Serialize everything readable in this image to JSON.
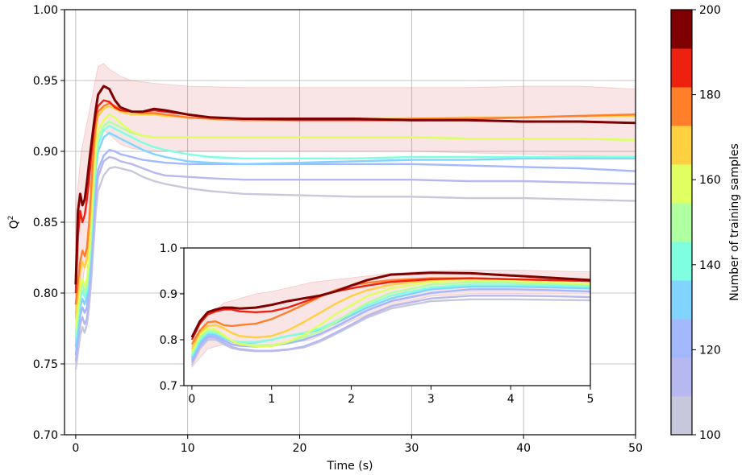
{
  "chart_data": {
    "type": "line",
    "main": {
      "xlabel": "Time (s)",
      "ylabel": "Q",
      "ylabel_sup": "2",
      "xlim": [
        -1,
        50
      ],
      "ylim": [
        0.7,
        1.0
      ],
      "xticks": [
        0,
        10,
        20,
        30,
        40,
        50
      ],
      "xtick_labels": [
        "0",
        "10",
        "20",
        "30",
        "40",
        "50"
      ],
      "yticks": [
        0.7,
        0.75,
        0.8,
        0.85,
        0.9,
        0.95,
        1.0
      ],
      "ytick_labels": [
        "0.70",
        "0.75",
        "0.80",
        "0.85",
        "0.90",
        "0.95",
        "1.00"
      ],
      "grid": true,
      "band": {
        "color": "#d9534f",
        "opacity": 0.15,
        "x": [
          0,
          0.5,
          1,
          1.5,
          2,
          2.5,
          3,
          4,
          5,
          7,
          10,
          15,
          20,
          25,
          30,
          35,
          40,
          45,
          50
        ],
        "upper": [
          0.86,
          0.9,
          0.92,
          0.94,
          0.96,
          0.962,
          0.958,
          0.953,
          0.95,
          0.948,
          0.946,
          0.945,
          0.945,
          0.945,
          0.945,
          0.945,
          0.946,
          0.946,
          0.944
        ],
        "lower": [
          0.75,
          0.8,
          0.83,
          0.87,
          0.905,
          0.915,
          0.912,
          0.905,
          0.902,
          0.9,
          0.9,
          0.9,
          0.9,
          0.9,
          0.9,
          0.899,
          0.898,
          0.897,
          0.896
        ]
      },
      "x": [
        0,
        0.2,
        0.4,
        0.6,
        0.8,
        1.0,
        1.2,
        1.4,
        1.6,
        1.8,
        2.0,
        2.5,
        3.0,
        3.5,
        4,
        5,
        6,
        7,
        8,
        10,
        12,
        15,
        20,
        25,
        30,
        35,
        40,
        45,
        50
      ],
      "series": [
        {
          "samples": 100,
          "color": "#c8c8dc",
          "values": [
            0.746,
            0.758,
            0.77,
            0.776,
            0.772,
            0.778,
            0.79,
            0.81,
            0.835,
            0.858,
            0.872,
            0.883,
            0.888,
            0.889,
            0.888,
            0.886,
            0.882,
            0.879,
            0.877,
            0.874,
            0.872,
            0.87,
            0.869,
            0.868,
            0.868,
            0.867,
            0.867,
            0.866,
            0.865
          ]
        },
        {
          "samples": 110,
          "color": "#b8b8f0",
          "values": [
            0.752,
            0.765,
            0.778,
            0.783,
            0.778,
            0.782,
            0.796,
            0.818,
            0.845,
            0.868,
            0.882,
            0.893,
            0.896,
            0.895,
            0.893,
            0.891,
            0.888,
            0.885,
            0.883,
            0.882,
            0.881,
            0.88,
            0.88,
            0.88,
            0.88,
            0.879,
            0.879,
            0.878,
            0.877
          ]
        },
        {
          "samples": 120,
          "color": "#a4b8ff",
          "values": [
            0.756,
            0.77,
            0.784,
            0.79,
            0.786,
            0.79,
            0.805,
            0.828,
            0.852,
            0.874,
            0.887,
            0.897,
            0.901,
            0.9,
            0.898,
            0.896,
            0.894,
            0.893,
            0.892,
            0.891,
            0.891,
            0.891,
            0.891,
            0.891,
            0.891,
            0.89,
            0.889,
            0.888,
            0.886
          ]
        },
        {
          "samples": 130,
          "color": "#80d4ff",
          "values": [
            0.762,
            0.775,
            0.79,
            0.796,
            0.792,
            0.798,
            0.814,
            0.838,
            0.866,
            0.888,
            0.9,
            0.91,
            0.913,
            0.911,
            0.909,
            0.905,
            0.901,
            0.898,
            0.896,
            0.893,
            0.892,
            0.891,
            0.892,
            0.893,
            0.894,
            0.894,
            0.895,
            0.895,
            0.895
          ]
        },
        {
          "samples": 140,
          "color": "#80ffe0",
          "values": [
            0.768,
            0.782,
            0.796,
            0.802,
            0.797,
            0.802,
            0.818,
            0.842,
            0.87,
            0.893,
            0.905,
            0.915,
            0.918,
            0.916,
            0.914,
            0.91,
            0.906,
            0.903,
            0.901,
            0.898,
            0.896,
            0.895,
            0.895,
            0.895,
            0.896,
            0.896,
            0.896,
            0.896,
            0.896
          ]
        },
        {
          "samples": 150,
          "color": "#b0ffa0",
          "values": [
            0.772,
            0.786,
            0.8,
            0.806,
            0.801,
            0.806,
            0.822,
            0.848,
            0.876,
            0.898,
            0.91,
            0.918,
            0.921,
            0.919,
            0.917,
            0.913,
            0.911,
            0.91,
            0.91,
            0.91,
            0.91,
            0.91,
            0.91,
            0.91,
            0.91,
            0.909,
            0.909,
            0.909,
            0.908
          ]
        },
        {
          "samples": 160,
          "color": "#e0ff60",
          "values": [
            0.776,
            0.79,
            0.804,
            0.81,
            0.805,
            0.81,
            0.827,
            0.854,
            0.882,
            0.904,
            0.915,
            0.922,
            0.926,
            0.924,
            0.92,
            0.914,
            0.911,
            0.91,
            0.91,
            0.91,
            0.91,
            0.91,
            0.91,
            0.91,
            0.91,
            0.909,
            0.909,
            0.909,
            0.908
          ]
        },
        {
          "samples": 170,
          "color": "#ffd040",
          "values": [
            0.785,
            0.8,
            0.815,
            0.822,
            0.818,
            0.824,
            0.842,
            0.868,
            0.895,
            0.915,
            0.925,
            0.93,
            0.932,
            0.93,
            0.928,
            0.926,
            0.926,
            0.926,
            0.925,
            0.924,
            0.923,
            0.922,
            0.922,
            0.923,
            0.923,
            0.924,
            0.924,
            0.925,
            0.925
          ]
        },
        {
          "samples": 180,
          "color": "#ff7f2a",
          "values": [
            0.792,
            0.808,
            0.822,
            0.83,
            0.826,
            0.832,
            0.85,
            0.876,
            0.902,
            0.92,
            0.928,
            0.932,
            0.934,
            0.932,
            0.93,
            0.928,
            0.927,
            0.927,
            0.926,
            0.924,
            0.923,
            0.922,
            0.922,
            0.922,
            0.923,
            0.923,
            0.924,
            0.925,
            0.926
          ]
        },
        {
          "samples": 190,
          "color": "#ee2010",
          "values": [
            0.8,
            0.84,
            0.858,
            0.85,
            0.855,
            0.866,
            0.88,
            0.898,
            0.914,
            0.926,
            0.932,
            0.936,
            0.935,
            0.931,
            0.929,
            0.928,
            0.928,
            0.929,
            0.928,
            0.926,
            0.924,
            0.923,
            0.922,
            0.922,
            0.922,
            0.922,
            0.921,
            0.921,
            0.92
          ]
        },
        {
          "samples": 200,
          "color": "#7f0000",
          "values": [
            0.806,
            0.858,
            0.87,
            0.862,
            0.866,
            0.878,
            0.892,
            0.905,
            0.918,
            0.93,
            0.94,
            0.946,
            0.944,
            0.936,
            0.931,
            0.928,
            0.928,
            0.93,
            0.929,
            0.926,
            0.924,
            0.923,
            0.923,
            0.923,
            0.922,
            0.922,
            0.921,
            0.921,
            0.92
          ]
        }
      ]
    },
    "inset": {
      "xlim": [
        -0.1,
        5
      ],
      "ylim": [
        0.7,
        1.0
      ],
      "xticks": [
        0,
        1,
        2,
        3,
        4,
        5
      ],
      "xtick_labels": [
        "0",
        "1",
        "2",
        "3",
        "4",
        "5"
      ],
      "yticks": [
        0.7,
        0.8,
        0.9,
        1.0
      ],
      "ytick_labels": [
        "0.7",
        "0.8",
        "0.9",
        "1.0"
      ],
      "grid": false,
      "band": {
        "color": "#d9534f",
        "opacity": 0.15,
        "x": [
          0,
          0.2,
          0.4,
          0.6,
          0.8,
          1.0,
          1.5,
          2.0,
          2.5,
          3.0,
          3.5,
          4.0,
          4.5,
          5.0
        ],
        "upper": [
          0.79,
          0.85,
          0.88,
          0.89,
          0.9,
          0.905,
          0.925,
          0.935,
          0.945,
          0.95,
          0.952,
          0.952,
          0.95,
          0.948
        ],
        "lower": [
          0.74,
          0.78,
          0.79,
          0.785,
          0.785,
          0.785,
          0.8,
          0.84,
          0.875,
          0.895,
          0.9,
          0.9,
          0.9,
          0.9
        ]
      },
      "x": [
        0,
        0.1,
        0.2,
        0.3,
        0.4,
        0.5,
        0.6,
        0.8,
        1.0,
        1.2,
        1.4,
        1.6,
        1.8,
        2.0,
        2.2,
        2.5,
        3.0,
        3.5,
        4.0,
        4.5,
        5.0
      ],
      "series": [
        {
          "samples": 100,
          "color": "#c8c8dc",
          "values": [
            0.745,
            0.78,
            0.8,
            0.8,
            0.79,
            0.782,
            0.778,
            0.775,
            0.775,
            0.778,
            0.783,
            0.795,
            0.812,
            0.83,
            0.848,
            0.868,
            0.884,
            0.888,
            0.888,
            0.887,
            0.886
          ]
        },
        {
          "samples": 110,
          "color": "#b8b8f0",
          "values": [
            0.75,
            0.785,
            0.805,
            0.804,
            0.793,
            0.784,
            0.78,
            0.776,
            0.776,
            0.779,
            0.785,
            0.798,
            0.815,
            0.833,
            0.852,
            0.873,
            0.89,
            0.896,
            0.896,
            0.895,
            0.893
          ]
        },
        {
          "samples": 120,
          "color": "#a4b8ff",
          "values": [
            0.755,
            0.79,
            0.808,
            0.808,
            0.798,
            0.79,
            0.787,
            0.785,
            0.787,
            0.792,
            0.8,
            0.812,
            0.828,
            0.846,
            0.864,
            0.884,
            0.902,
            0.91,
            0.91,
            0.908,
            0.905
          ]
        },
        {
          "samples": 130,
          "color": "#80d4ff",
          "values": [
            0.76,
            0.795,
            0.812,
            0.812,
            0.803,
            0.796,
            0.793,
            0.794,
            0.8,
            0.808,
            0.814,
            0.822,
            0.836,
            0.853,
            0.87,
            0.89,
            0.91,
            0.916,
            0.916,
            0.914,
            0.912
          ]
        },
        {
          "samples": 140,
          "color": "#80ffe0",
          "values": [
            0.765,
            0.8,
            0.816,
            0.815,
            0.806,
            0.798,
            0.795,
            0.795,
            0.8,
            0.808,
            0.815,
            0.824,
            0.84,
            0.858,
            0.875,
            0.896,
            0.914,
            0.92,
            0.92,
            0.918,
            0.916
          ]
        },
        {
          "samples": 150,
          "color": "#b0ffa0",
          "values": [
            0.77,
            0.805,
            0.82,
            0.818,
            0.808,
            0.798,
            0.792,
            0.788,
            0.788,
            0.795,
            0.805,
            0.818,
            0.838,
            0.86,
            0.88,
            0.902,
            0.92,
            0.925,
            0.925,
            0.922,
            0.92
          ]
        },
        {
          "samples": 160,
          "color": "#e0ff60",
          "values": [
            0.775,
            0.81,
            0.825,
            0.822,
            0.81,
            0.798,
            0.79,
            0.786,
            0.786,
            0.795,
            0.81,
            0.832,
            0.855,
            0.875,
            0.895,
            0.912,
            0.926,
            0.93,
            0.928,
            0.925,
            0.922
          ]
        },
        {
          "samples": 170,
          "color": "#ffd040",
          "values": [
            0.78,
            0.815,
            0.83,
            0.832,
            0.825,
            0.815,
            0.808,
            0.805,
            0.808,
            0.82,
            0.838,
            0.858,
            0.878,
            0.895,
            0.908,
            0.92,
            0.93,
            0.934,
            0.932,
            0.93,
            0.928
          ]
        },
        {
          "samples": 180,
          "color": "#ff7f2a",
          "values": [
            0.79,
            0.82,
            0.838,
            0.84,
            0.832,
            0.83,
            0.832,
            0.835,
            0.845,
            0.86,
            0.876,
            0.893,
            0.908,
            0.918,
            0.924,
            0.93,
            0.934,
            0.934,
            0.932,
            0.93,
            0.928
          ]
        },
        {
          "samples": 190,
          "color": "#ee2010",
          "values": [
            0.8,
            0.835,
            0.855,
            0.862,
            0.866,
            0.866,
            0.862,
            0.86,
            0.862,
            0.87,
            0.882,
            0.895,
            0.905,
            0.912,
            0.918,
            0.926,
            0.932,
            0.934,
            0.932,
            0.93,
            0.928
          ]
        },
        {
          "samples": 200,
          "color": "#7f0000",
          "values": [
            0.805,
            0.84,
            0.86,
            0.866,
            0.87,
            0.87,
            0.868,
            0.87,
            0.876,
            0.884,
            0.89,
            0.896,
            0.905,
            0.918,
            0.93,
            0.942,
            0.946,
            0.945,
            0.94,
            0.935,
            0.93
          ]
        }
      ]
    },
    "colorbar": {
      "label": "Number of training samples",
      "range": [
        100,
        200
      ],
      "ticks": [
        100,
        120,
        140,
        160,
        180,
        200
      ],
      "tick_labels": [
        "100",
        "120",
        "140",
        "160",
        "180",
        "200"
      ],
      "colors": [
        "#c8c8dc",
        "#b8b8f0",
        "#a4b8ff",
        "#80d4ff",
        "#80ffe0",
        "#b0ffa0",
        "#e0ff60",
        "#ffd040",
        "#ff7f2a",
        "#ee2010",
        "#7f0000"
      ]
    }
  }
}
